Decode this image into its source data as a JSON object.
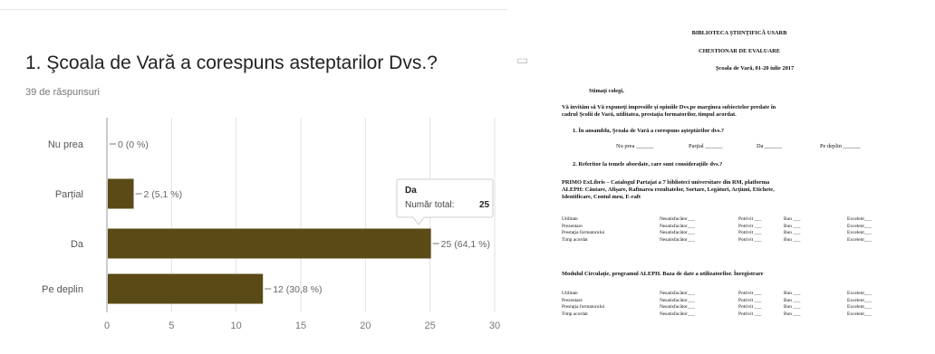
{
  "form_summary": {
    "question": "1. Şcoala de Vară a corespuns asteptarilor Dvs.?",
    "response_count": "39 de răspunsuri",
    "menu_icon": "copy-icon"
  },
  "chart_data": {
    "type": "bar",
    "orientation": "horizontal",
    "categories": [
      "Nu prea",
      "Parțial",
      "Da",
      "Pe deplin"
    ],
    "values": [
      0,
      2,
      25,
      12
    ],
    "data_labels": [
      "0 (0 %)",
      "2 (5,1 %)",
      "25 (64,1 %)",
      "12 (30,8 %)"
    ],
    "xlim": [
      0,
      30
    ],
    "xticks": [
      "0",
      "5",
      "10",
      "15",
      "20",
      "25",
      "30"
    ],
    "grid": true,
    "bar_color": "#5a4a16",
    "tooltip": {
      "title": "Da",
      "label": "Număr total:",
      "value": "25"
    }
  },
  "document": {
    "institution": "BIBLIOTECA ŞTIINŢIFICĂ USARB",
    "title": "CHESTIONAR DE EVALUARE",
    "event": "Şcoala de Vară, 01-20 iulie 2017",
    "greeting": "Stimaţi colegi,",
    "intro_line1": "Vă invităm să Vă expuneţi impresiile şi opiniile Dvs.pe marginea subiectelor predate în",
    "intro_line2": "cadrul Şcolii de Vară, utilitatea, prestaţia formatorilor, timpul acordat.",
    "q1": "1.  În ansamblu, Şcoala de Vară a corespuns aşteptărilor dvs.?",
    "q1_options": [
      "Nu prea ______",
      "Parţial ______",
      "Da ______",
      "Pe deplin ______"
    ],
    "q2": "2.  Referitor la temele abordate, care sunt consideraţiile dvs.?",
    "section1_line1": "PRIMO ExLibris – Catalogul Partajat a 7 biblioteci universitare din RM, platforma",
    "section1_line2": "ALEPH: Căutare, Afişare, Rafinarea rezultatelor, Sortare, Legături, Acţiuni, Etichete,",
    "section1_line3": "Identificare, Contul meu, E-raft",
    "section2": "Modulul Circulaţie, programul ALEPH. Baza de date a utilizatorilor. Înregistrare",
    "criteria": [
      "Utilitate",
      "Prezentare",
      "Prestaţia formatorului",
      "Timp acordat"
    ],
    "ratings": [
      "Nesatisfacător___",
      "Potrivit ___",
      "Bun ___",
      "Excelent___"
    ]
  }
}
